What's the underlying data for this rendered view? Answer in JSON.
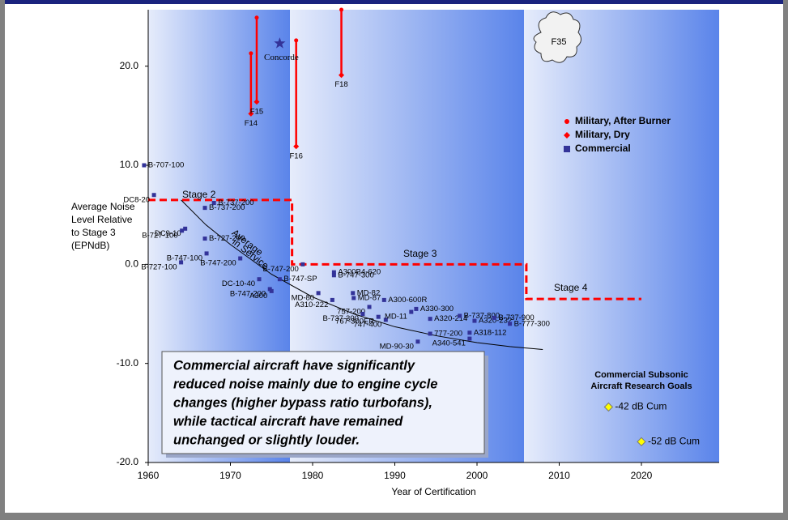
{
  "chart_data": {
    "type": "scatter",
    "x_label": "Year of Certification",
    "y_label_lines": [
      "Average Noise",
      "Level Relative",
      "to Stage 3",
      "(EPNdB)"
    ],
    "xlim": [
      1960,
      2030
    ],
    "ylim": [
      -20,
      25.7
    ],
    "xticks": [
      1960,
      1970,
      1980,
      1990,
      2000,
      2010,
      2020
    ],
    "yticks": [
      {
        "value": -20,
        "label": "-20.0"
      },
      {
        "value": -10,
        "label": "-10.0"
      },
      {
        "value": 0,
        "label": "0.0"
      },
      {
        "value": 10,
        "label": "10.0"
      },
      {
        "value": 20,
        "label": "20.0"
      }
    ],
    "legend_position": "upper right",
    "series": [
      {
        "name": "Military, After Burner",
        "color": "#ff0000",
        "marker": "circle",
        "x": [
          1972.5,
          1973.2,
          1978,
          1983.5
        ],
        "values": [
          21.3,
          24.9,
          22.6,
          25.7
        ]
      },
      {
        "name": "Military, Dry",
        "color": "#ff0000",
        "marker": "diamond",
        "x": [
          1972.5,
          1973.2,
          1978,
          1983.5
        ],
        "values": [
          15.2,
          16.4,
          11.9,
          19.1
        ],
        "labels": [
          "F14",
          "F15",
          "F16",
          "F18"
        ]
      },
      {
        "name": "Commercial",
        "color": "#333399",
        "marker": "square",
        "x": [
          1959.5,
          1960.7,
          1968,
          1966.9,
          1964.5,
          1964.1,
          1966.9,
          1967.1,
          1964,
          1971.2,
          1973.5,
          1976,
          1974.8,
          1975,
          1978.8,
          1982.6,
          1982.6,
          1980.7,
          1984.9,
          1985,
          1982.4,
          1986.9,
          1986.1,
          1988,
          1988.9,
          1988.7,
          1992,
          1992.6,
          1994.3,
          1994.3,
          1992.8,
          1997.9,
          1999.7,
          2002.1,
          2004,
          1999.1,
          1999.1
        ],
        "values": [
          10.0,
          7.0,
          6.2,
          5.7,
          3.6,
          3.4,
          2.6,
          1.1,
          0.2,
          0.6,
          -1.5,
          -1.5,
          -2.5,
          -2.7,
          0.0,
          -0.8,
          -1.1,
          -2.9,
          -2.9,
          -3.4,
          -3.6,
          -4.3,
          -5.0,
          -5.3,
          -5.6,
          -3.6,
          -4.8,
          -4.5,
          -5.5,
          -7.0,
          -7.8,
          -5.2,
          -5.7,
          -5.4,
          -6.0,
          -6.9,
          -7.5
        ],
        "labels": [
          "B-707-100",
          "DC8-20",
          "B-737-200",
          "B-737-200",
          "DC9-10",
          "B-727-100",
          "B-727-200",
          "B-747-100",
          "B-727-100",
          "B-747-200",
          "DC-10-40",
          "B-747-SP",
          "B-747-200",
          "A300",
          "B-747-200",
          "A300B4-620",
          "B-747-300",
          "MD-80",
          "MD-82",
          "MD-87",
          "A310-222",
          "757-200",
          "B-737-300",
          "767-300ER",
          "747-400",
          "A300-600R",
          "MD-11",
          "A330-300",
          "A320-214",
          "777-200",
          "MD-90-30",
          "B-737-800",
          "A320-232",
          "B-737-900",
          "B-777-300",
          "A318-112",
          "A340-541"
        ]
      }
    ],
    "concorde": {
      "label": "Concorde",
      "color": "#333399",
      "x": 1976,
      "value": 22.3
    },
    "f35": {
      "label": "F35"
    },
    "stage_line": {
      "color": "#ff0000",
      "x": [
        1960,
        1977.5,
        1977.5,
        2006,
        2006,
        2020
      ],
      "values": [
        6.5,
        6.5,
        0,
        0,
        -3.5,
        -3.5
      ],
      "labels": [
        "Stage 2",
        "Stage 3",
        "Stage 4"
      ]
    },
    "trend": {
      "color": "#000000",
      "label_lines": [
        "Average",
        "in Service"
      ],
      "x": [
        1964,
        1967,
        1970,
        1975,
        1980,
        1985,
        1990,
        1995,
        2000,
        2004,
        2008
      ],
      "values": [
        6.5,
        4.0,
        2.0,
        -1.0,
        -3.3,
        -5.0,
        -6.3,
        -7.2,
        -7.9,
        -8.3,
        -8.6
      ]
    },
    "goals": {
      "title_lines": [
        "Commercial Subsonic",
        "Aircraft Research Goals"
      ],
      "color": "#ffff00",
      "x": [
        2016,
        2020
      ],
      "values": [
        -14.4,
        -17.9
      ],
      "labels": [
        "-42 dB Cum",
        "-52 dB Cum"
      ]
    },
    "callout": {
      "lines": [
        "Commercial aircraft have significantly",
        "reduced noise mainly due to engine cycle",
        "changes (higher bypass ratio turbofans),",
        "while tactical aircraft have remained",
        "unchanged or slightly louder."
      ]
    }
  }
}
